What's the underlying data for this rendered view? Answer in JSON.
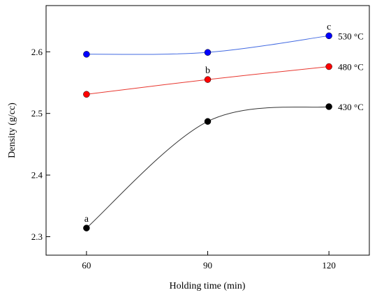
{
  "chart_data": {
    "type": "line",
    "xlabel": "Holding time (min)",
    "ylabel": "Density (g/cc)",
    "x": [
      60,
      90,
      120
    ],
    "xlim": [
      50,
      130
    ],
    "ylim": [
      2.27,
      2.675
    ],
    "xticks": [
      60,
      90,
      120
    ],
    "yticks": [
      2.3,
      2.4,
      2.5,
      2.6
    ],
    "ytick_labels": [
      "2.3",
      "2.4",
      "2.5",
      "2.6"
    ],
    "grid": false,
    "series": [
      {
        "name": "530 °C",
        "values": [
          2.596,
          2.599,
          2.626
        ],
        "color": "#0000ff",
        "line_color": "#4169e1"
      },
      {
        "name": "480 °C",
        "values": [
          2.531,
          2.555,
          2.576
        ],
        "color": "#ff0000",
        "line_color": "#e8362e"
      },
      {
        "name": "430 °C",
        "values": [
          2.314,
          2.487,
          2.511
        ],
        "color": "#000000",
        "line_color": "#333333"
      }
    ],
    "annotations": [
      {
        "text": "a",
        "x": 60,
        "y": 2.314
      },
      {
        "text": "b",
        "x": 90,
        "y": 2.555
      },
      {
        "text": "c",
        "x": 120,
        "y": 2.626
      }
    ]
  }
}
